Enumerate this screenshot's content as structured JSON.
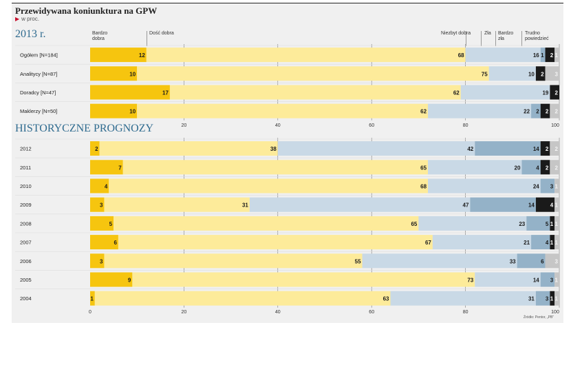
{
  "title": "Przewidywana koniunktura na GPW",
  "subtitle": "w proc.",
  "source": "Źródło: Pentor, „PB”",
  "categories": [
    "Bardzo dobra",
    "Dość dobra",
    "Niezbyt dobra",
    "Zła",
    "Bardzo zła",
    "Trudno powiedzieć"
  ],
  "headers": {
    "bardzo_dobra": [
      "Bardzo",
      "dobra"
    ],
    "dosc_dobra": "Dość dobra",
    "niezbyt_dobra": "Niezbyt dobra",
    "zla": "Zła",
    "bardzo_zla": [
      "Bardzo",
      "zła"
    ],
    "trudno": [
      "Trudno",
      "powiedzieć"
    ]
  },
  "colors": {
    "bardzo_dobra": "#f6c50f",
    "dosc_dobra": "#fdeb9a",
    "niezbyt_dobra": "#c9d9e6",
    "zla": "#94b2c8",
    "bardzo_zla": "#1a1a1a",
    "trudno": "#c6c6c6",
    "section": "#2f6b8f"
  },
  "chart_data": [
    {
      "type": "bar",
      "stacked": true,
      "orientation": "horizontal",
      "section_title": "2013 r.",
      "xlim": [
        0,
        100
      ],
      "xticks": [
        20,
        40,
        60,
        80,
        100
      ],
      "rows": [
        {
          "label": "Ogółem [N=184]",
          "values": [
            12,
            68,
            16,
            1,
            2,
            1
          ]
        },
        {
          "label": "Analitycy [N=87]",
          "values": [
            10,
            75,
            10,
            2,
            3
          ],
          "layout": "no_zla"
        },
        {
          "label": "Doradcy [N=47]",
          "values": [
            17,
            62,
            19,
            2
          ],
          "layout": "no_zla_no_trudno"
        },
        {
          "label": "Maklerzy [N=50]",
          "values": [
            10,
            62,
            22,
            2,
            2,
            2
          ]
        }
      ]
    },
    {
      "type": "bar",
      "stacked": true,
      "orientation": "horizontal",
      "section_title": "HISTORYCZNE PROGNOZY",
      "xlim": [
        0,
        100
      ],
      "xticks": [
        0,
        20,
        40,
        60,
        80,
        100
      ],
      "rows": [
        {
          "label": "2012",
          "values": [
            2,
            38,
            42,
            14,
            2,
            2
          ]
        },
        {
          "label": "2011",
          "values": [
            7,
            65,
            20,
            4,
            2,
            2
          ]
        },
        {
          "label": "2010",
          "values": [
            4,
            68,
            24,
            3,
            1
          ],
          "layout": "no_bardzo_zla"
        },
        {
          "label": "2009",
          "values": [
            3,
            31,
            47,
            14,
            4,
            1
          ]
        },
        {
          "label": "2008",
          "values": [
            5,
            65,
            23,
            5,
            1,
            1
          ]
        },
        {
          "label": "2007",
          "values": [
            6,
            67,
            21,
            4,
            1,
            1
          ]
        },
        {
          "label": "2006",
          "values": [
            3,
            55,
            33,
            6,
            3
          ],
          "layout": "no_bardzo_zla"
        },
        {
          "label": "2005",
          "values": [
            9,
            73,
            14,
            3,
            1
          ],
          "layout": "no_bardzo_zla"
        },
        {
          "label": "2004",
          "values": [
            1,
            63,
            31,
            3,
            1,
            1
          ]
        }
      ]
    }
  ]
}
